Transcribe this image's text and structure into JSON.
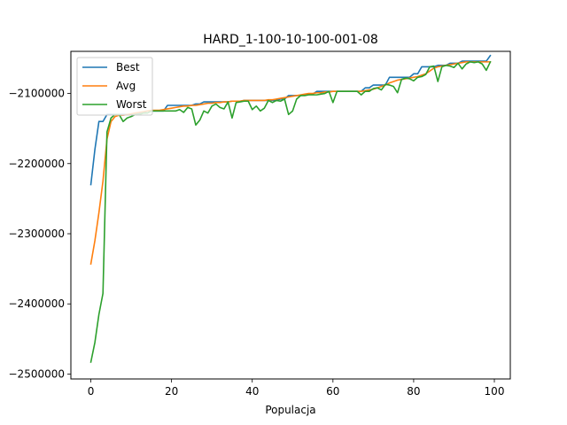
{
  "chart_data": {
    "type": "line",
    "title": "HARD_1-100-10-100-001-08",
    "xlabel": "Populacja",
    "ylabel": "",
    "xlim": [
      -4.95,
      103.95
    ],
    "ylim": [
      -2507000,
      -2040000
    ],
    "x_ticks": [
      0,
      20,
      40,
      60,
      80,
      100
    ],
    "x_tick_labels": [
      "0",
      "20",
      "40",
      "60",
      "80",
      "100"
    ],
    "y_ticks": [
      -2500000,
      -2400000,
      -2300000,
      -2200000,
      -2100000
    ],
    "y_tick_labels": [
      "−2500000",
      "−2400000",
      "−2300000",
      "−2200000",
      "−2100000"
    ],
    "grid": false,
    "legend_position": "top-left",
    "series": [
      {
        "name": "Best",
        "color": "#1f77b4",
        "values": [
          -2230000,
          -2180000,
          -2140000,
          -2140000,
          -2130000,
          -2130000,
          -2130000,
          -2130000,
          -2130000,
          -2130000,
          -2130000,
          -2128000,
          -2128000,
          -2128000,
          -2125000,
          -2125000,
          -2125000,
          -2125000,
          -2125000,
          -2117000,
          -2117000,
          -2117000,
          -2117000,
          -2117000,
          -2117000,
          -2117000,
          -2115000,
          -2115000,
          -2112000,
          -2112000,
          -2112000,
          -2112000,
          -2112000,
          -2112000,
          -2112000,
          -2111000,
          -2111000,
          -2111000,
          -2110000,
          -2110000,
          -2110000,
          -2110000,
          -2110000,
          -2110000,
          -2110000,
          -2110000,
          -2110000,
          -2108000,
          -2108000,
          -2103000,
          -2103000,
          -2103000,
          -2103000,
          -2102000,
          -2101000,
          -2101000,
          -2097000,
          -2097000,
          -2097000,
          -2097000,
          -2097000,
          -2097000,
          -2097000,
          -2097000,
          -2097000,
          -2097000,
          -2097000,
          -2097000,
          -2092000,
          -2092000,
          -2088000,
          -2088000,
          -2088000,
          -2088000,
          -2077000,
          -2077000,
          -2077000,
          -2077000,
          -2077000,
          -2077000,
          -2072000,
          -2072000,
          -2062000,
          -2062000,
          -2062000,
          -2062000,
          -2060000,
          -2060000,
          -2060000,
          -2057000,
          -2057000,
          -2057000,
          -2054000,
          -2054000,
          -2054000,
          -2054000,
          -2054000,
          -2054000,
          -2054000,
          -2046000
        ]
      },
      {
        "name": "Avg",
        "color": "#ff7f0e",
        "values": [
          -2343000,
          -2310000,
          -2270000,
          -2225000,
          -2165000,
          -2140000,
          -2133000,
          -2131000,
          -2131000,
          -2130000,
          -2129000,
          -2128000,
          -2127000,
          -2126000,
          -2125000,
          -2124000,
          -2124000,
          -2124000,
          -2123000,
          -2122000,
          -2121000,
          -2120000,
          -2119000,
          -2118000,
          -2118000,
          -2117000,
          -2117000,
          -2116000,
          -2115000,
          -2114000,
          -2114000,
          -2113000,
          -2113000,
          -2112000,
          -2112000,
          -2111000,
          -2111000,
          -2111000,
          -2110000,
          -2110000,
          -2110000,
          -2110000,
          -2110000,
          -2110000,
          -2109000,
          -2109000,
          -2108000,
          -2107000,
          -2106000,
          -2105000,
          -2104000,
          -2103000,
          -2102000,
          -2101000,
          -2100000,
          -2100000,
          -2099000,
          -2099000,
          -2098000,
          -2098000,
          -2097000,
          -2097000,
          -2097000,
          -2097000,
          -2097000,
          -2097000,
          -2097000,
          -2097000,
          -2096000,
          -2095000,
          -2094000,
          -2092000,
          -2090000,
          -2088000,
          -2085000,
          -2083000,
          -2081000,
          -2080000,
          -2079000,
          -2078000,
          -2077000,
          -2076000,
          -2074000,
          -2072000,
          -2068000,
          -2064000,
          -2062000,
          -2061000,
          -2060000,
          -2059000,
          -2058000,
          -2057000,
          -2056000,
          -2055000,
          -2055000,
          -2055000,
          -2055000,
          -2055000,
          -2055000,
          -2055000
        ]
      },
      {
        "name": "Worst",
        "color": "#2ca02c",
        "values": [
          -2483000,
          -2455000,
          -2415000,
          -2385000,
          -2155000,
          -2135000,
          -2130000,
          -2130000,
          -2140000,
          -2135000,
          -2133000,
          -2130000,
          -2130000,
          -2128000,
          -2128000,
          -2125000,
          -2125000,
          -2125000,
          -2125000,
          -2125000,
          -2125000,
          -2125000,
          -2123000,
          -2127000,
          -2120000,
          -2122000,
          -2145000,
          -2138000,
          -2125000,
          -2128000,
          -2118000,
          -2115000,
          -2120000,
          -2122000,
          -2112000,
          -2135000,
          -2113000,
          -2112000,
          -2111000,
          -2111000,
          -2123000,
          -2118000,
          -2125000,
          -2121000,
          -2110000,
          -2113000,
          -2110000,
          -2111000,
          -2108000,
          -2130000,
          -2125000,
          -2108000,
          -2103000,
          -2103000,
          -2102000,
          -2102000,
          -2102000,
          -2101000,
          -2100000,
          -2097000,
          -2113000,
          -2097000,
          -2097000,
          -2097000,
          -2097000,
          -2097000,
          -2097000,
          -2102000,
          -2097000,
          -2097000,
          -2093000,
          -2092000,
          -2095000,
          -2087000,
          -2088000,
          -2090000,
          -2099000,
          -2080000,
          -2078000,
          -2079000,
          -2082000,
          -2077000,
          -2076000,
          -2073000,
          -2062000,
          -2061000,
          -2083000,
          -2062000,
          -2060000,
          -2061000,
          -2063000,
          -2057000,
          -2065000,
          -2058000,
          -2055000,
          -2056000,
          -2055000,
          -2058000,
          -2067000,
          -2055000
        ]
      }
    ]
  }
}
